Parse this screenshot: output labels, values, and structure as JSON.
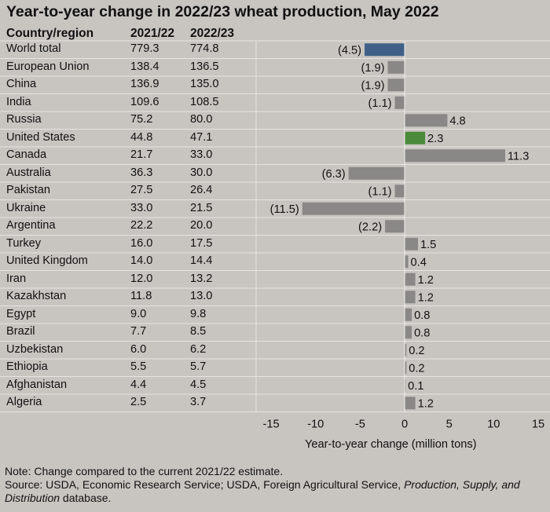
{
  "title": "Year-to-year change in 2022/23 wheat production, May 2022",
  "table": {
    "headers": {
      "country": "Country/region",
      "col1": "2021/22",
      "col2": "2022/23"
    }
  },
  "chart_data": {
    "type": "bar",
    "orientation": "horizontal",
    "title": "Year-to-year change in 2022/23 wheat production, May 2022",
    "xlabel": "Year-to-year change (million tons)",
    "xlim": [
      -15,
      15
    ],
    "xticks": [
      -15,
      -10,
      -5,
      0,
      5,
      10,
      15
    ],
    "grid": "horizontal row separators",
    "colors": {
      "world": "#3f5f86",
      "us": "#4a8a3a",
      "default": "#8a8886"
    },
    "categories": [
      "World total",
      "European Union",
      "China",
      "India",
      "Russia",
      "United States",
      "Canada",
      "Australia",
      "Pakistan",
      "Ukraine",
      "Argentina",
      "Turkey",
      "United Kingdom",
      "Iran",
      "Kazakhstan",
      "Egypt",
      "Brazil",
      "Uzbekistan",
      "Ethiopia",
      "Afghanistan",
      "Algeria"
    ],
    "production_2021_22": [
      "779.3",
      "138.4",
      "136.9",
      "109.6",
      "75.2",
      "44.8",
      "21.7",
      "36.3",
      "27.5",
      "33.0",
      "22.2",
      "16.0",
      "14.0",
      "12.0",
      "11.8",
      "9.0",
      "7.7",
      "6.0",
      "5.5",
      "4.4",
      "2.5"
    ],
    "production_2022_23": [
      "774.8",
      "136.5",
      "135.0",
      "108.5",
      "80.0",
      "47.1",
      "33.0",
      "30.0",
      "26.4",
      "21.5",
      "20.0",
      "17.5",
      "14.4",
      "13.2",
      "13.0",
      "9.8",
      "8.5",
      "6.2",
      "5.7",
      "4.5",
      "3.7"
    ],
    "values": [
      -4.5,
      -1.9,
      -1.9,
      -1.1,
      4.8,
      2.3,
      11.3,
      -6.3,
      -1.1,
      -11.5,
      -2.2,
      1.5,
      0.4,
      1.2,
      1.2,
      0.8,
      0.8,
      0.2,
      0.2,
      0.1,
      1.2
    ],
    "value_labels": [
      "(4.5)",
      "(1.9)",
      "(1.9)",
      "(1.1)",
      "4.8",
      "2.3",
      "11.3",
      "(6.3)",
      "(1.1)",
      "(11.5)",
      "(2.2)",
      "1.5",
      "0.4",
      "1.2",
      "1.2",
      "0.8",
      "0.8",
      "0.2",
      "0.2",
      "0.1",
      "1.2"
    ]
  },
  "notes": {
    "note": "Note: Change compared to the current 2021/22 estimate.",
    "source_prefix": "Source: USDA, Economic Research Service; USDA, Foreign Agricultural Service, ",
    "source_italic": "Production, Supply, and Distribution",
    "source_suffix": " database."
  }
}
